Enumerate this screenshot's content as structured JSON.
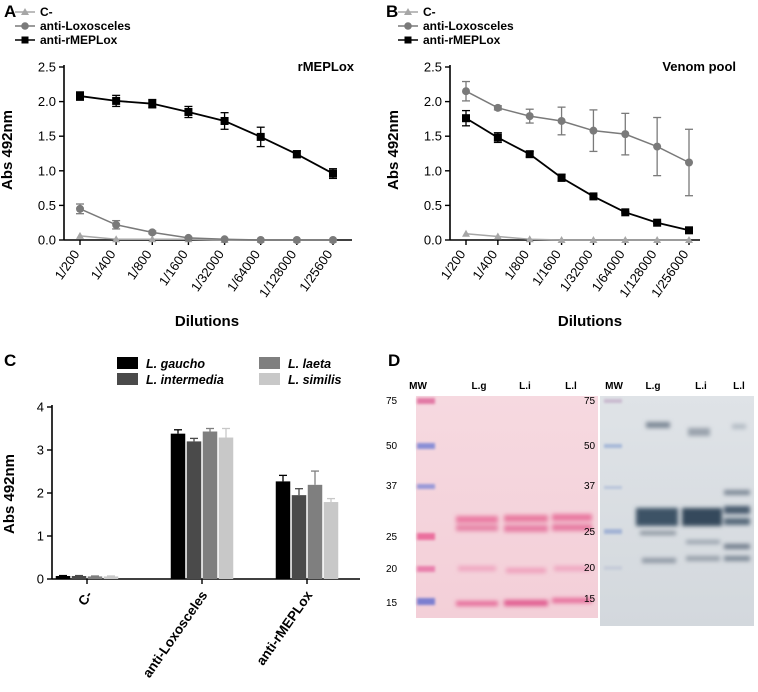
{
  "chart_data": [
    {
      "panel": "A",
      "type": "line",
      "title": "rMEPLox",
      "xlabel": "Dilutions",
      "ylabel": "Abs 492nm",
      "ylim": [
        0,
        2.5
      ],
      "yticks": [
        "0.0",
        "0.5",
        "1.0",
        "1.5",
        "2.0",
        "2.5"
      ],
      "categories": [
        "1/200",
        "1/400",
        "1/800",
        "1/1600",
        "1/32000",
        "1/64000",
        "1/128000",
        "1/25600"
      ],
      "series": [
        {
          "name": "C-",
          "marker": "triangle",
          "color": "#a6a6a6",
          "values": [
            0.06,
            0.01,
            0.01,
            0.01,
            0.0,
            0.0,
            0.0,
            0.0
          ],
          "errors": [
            0,
            0,
            0,
            0,
            0,
            0,
            0,
            0
          ]
        },
        {
          "name": "anti-Loxosceles",
          "marker": "circle",
          "color": "#7a7a7a",
          "values": [
            0.45,
            0.22,
            0.11,
            0.03,
            0.01,
            0.0,
            0.0,
            0.0
          ],
          "errors": [
            0.07,
            0.06,
            0.02,
            0.01,
            0,
            0,
            0,
            0
          ]
        },
        {
          "name": "anti-rMEPLox",
          "marker": "square",
          "color": "#000000",
          "values": [
            2.08,
            2.01,
            1.97,
            1.85,
            1.72,
            1.49,
            1.24,
            0.96
          ],
          "errors": [
            0.06,
            0.08,
            0.06,
            0.08,
            0.12,
            0.14,
            0.05,
            0.07
          ]
        }
      ]
    },
    {
      "panel": "B",
      "type": "line",
      "title": "Venom pool",
      "xlabel": "Dilutions",
      "ylabel": "Abs 492nm",
      "ylim": [
        0,
        2.5
      ],
      "yticks": [
        "0.0",
        "0.5",
        "1.0",
        "1.5",
        "2.0",
        "2.5"
      ],
      "categories": [
        "1/200",
        "1/400",
        "1/800",
        "1/1600",
        "1/32000",
        "1/64000",
        "1/128000",
        "1/256000"
      ],
      "series": [
        {
          "name": "C-",
          "marker": "triangle",
          "color": "#a6a6a6",
          "values": [
            0.09,
            0.05,
            0.01,
            0.0,
            0.0,
            0.0,
            0.0,
            0.0
          ],
          "errors": [
            0,
            0,
            0,
            0,
            0,
            0,
            0,
            0
          ]
        },
        {
          "name": "anti-Loxosceles",
          "marker": "circle",
          "color": "#7a7a7a",
          "values": [
            2.15,
            1.91,
            1.79,
            1.72,
            1.58,
            1.53,
            1.35,
            1.12
          ],
          "errors": [
            0.14,
            0.03,
            0.1,
            0.2,
            0.3,
            0.3,
            0.42,
            0.48
          ]
        },
        {
          "name": "anti-rMEPLox",
          "marker": "square",
          "color": "#000000",
          "values": [
            1.76,
            1.48,
            1.24,
            0.9,
            0.63,
            0.4,
            0.25,
            0.14
          ],
          "errors": [
            0.11,
            0.07,
            0.04,
            0.05,
            0.02,
            0.01,
            0.01,
            0.01
          ]
        }
      ]
    },
    {
      "panel": "C",
      "type": "bar",
      "ylabel": "Abs 492nm",
      "ylim": [
        0,
        4
      ],
      "yticks": [
        "0",
        "1",
        "2",
        "3",
        "4"
      ],
      "categories": [
        "C-",
        "anti-Loxosceles",
        "anti-rMEPLox"
      ],
      "series": [
        {
          "name": "L. gaucho",
          "color": "#000000",
          "values": [
            0.07,
            3.38,
            2.27
          ],
          "errors": [
            0.01,
            0.09,
            0.14
          ]
        },
        {
          "name": "L. intermedia",
          "color": "#4a4a4a",
          "values": [
            0.07,
            3.2,
            1.95
          ],
          "errors": [
            0.01,
            0.07,
            0.15
          ]
        },
        {
          "name": "L. laeta",
          "color": "#7f7f7f",
          "values": [
            0.06,
            3.43,
            2.19
          ],
          "errors": [
            0.01,
            0.07,
            0.32
          ]
        },
        {
          "name": "L. similis",
          "color": "#c8c8c8",
          "values": [
            0.06,
            3.29,
            1.79
          ],
          "errors": [
            0.01,
            0.21,
            0.08
          ]
        }
      ]
    }
  ],
  "panel_labels": {
    "a": "A",
    "b": "B",
    "c": "C",
    "d": "D"
  },
  "gel": {
    "left_lanes": [
      "MW",
      "L.g",
      "L.i",
      "L.l"
    ],
    "right_lanes": [
      "MW",
      "L.g",
      "L.i",
      "L.l"
    ],
    "mw_markers": [
      "75",
      "50",
      "37",
      "25",
      "20",
      "15"
    ]
  }
}
